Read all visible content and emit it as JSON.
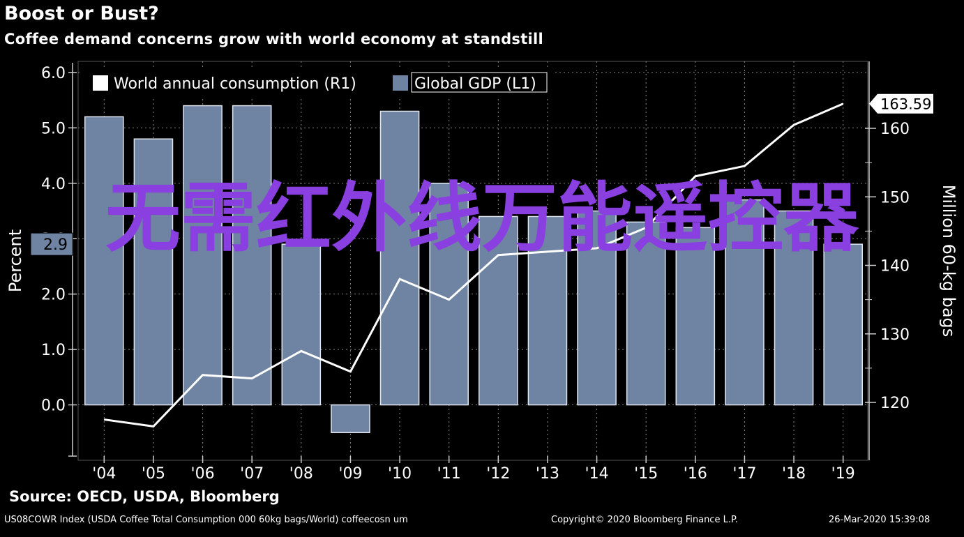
{
  "header": {
    "title": "Boost or Bust?",
    "subtitle": "Coffee demand concerns grow with world economy at standstill"
  },
  "footer": {
    "source": "Source: OECD, USDA, Bloomberg",
    "index": "US08COWR Index (USDA Coffee Total Consumption 000 60kg bags/World) coffeecosn um",
    "copyright": "Copyright© 2020 Bloomberg Finance L.P.",
    "timestamp": "26-Mar-2020 15:39:08"
  },
  "overlay_text": "无需红外线万能遥控器",
  "colors": {
    "bar": "#6f84a3",
    "line": "#ffffff",
    "overlay": "#8a3fe0",
    "background": "#000000"
  },
  "chart_data": {
    "type": "bar",
    "categories": [
      "'04",
      "'05",
      "'06",
      "'07",
      "'08",
      "'09",
      "'10",
      "'11",
      "'12",
      "'13",
      "'14",
      "'15",
      "'16",
      "'17",
      "'18",
      "'19"
    ],
    "ylabel_left": "Percent",
    "ylabel_right": "Million 60-kg bags",
    "ylim_left": [
      -1.0,
      6.2
    ],
    "ylim_right": [
      112,
      163.59
    ],
    "left_ticks": [
      "6.0",
      "5.0",
      "4.0",
      "3.0",
      "2.0",
      "1.0",
      "0.0"
    ],
    "left_tick_values": [
      6,
      5,
      4,
      3,
      2,
      1,
      0
    ],
    "right_ticks": [
      "160",
      "150",
      "140",
      "130",
      "120"
    ],
    "right_tick_values": [
      160,
      150,
      140,
      130,
      120
    ],
    "last_value_label": "163.59",
    "last_bar_label": "2.9",
    "series": [
      {
        "name": "Global GDP (L1)",
        "type": "bar",
        "axis": "left",
        "values": [
          5.2,
          4.8,
          5.4,
          5.4,
          2.9,
          -0.5,
          5.3,
          4.0,
          3.4,
          3.4,
          3.5,
          3.3,
          3.2,
          3.7,
          3.5,
          2.9
        ]
      },
      {
        "name": "World annual consumption (R1)",
        "type": "line",
        "axis": "right",
        "values": [
          117.5,
          116.5,
          124.0,
          123.5,
          127.5,
          124.5,
          138.0,
          135.0,
          141.5,
          142.0,
          142.5,
          145.5,
          153.0,
          154.5,
          160.5,
          163.59
        ]
      }
    ],
    "legend": "top-left",
    "grid": true
  }
}
